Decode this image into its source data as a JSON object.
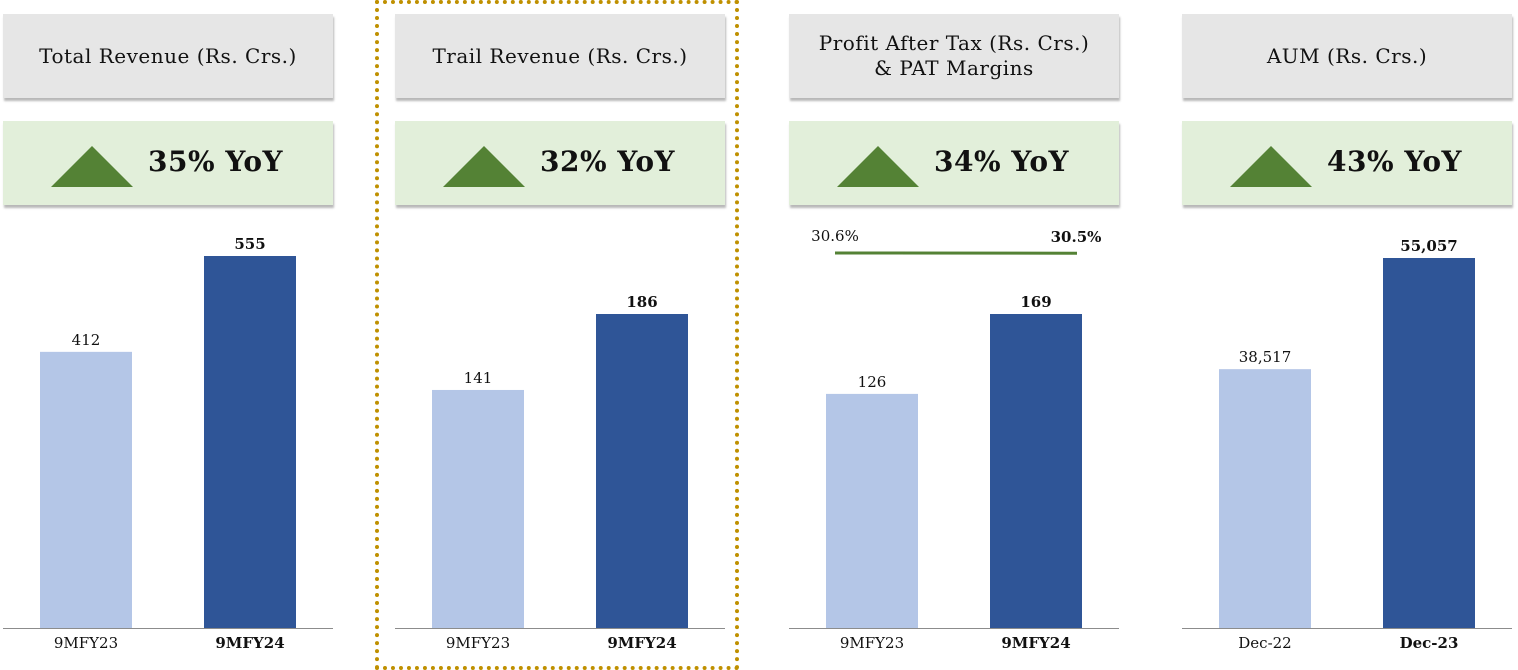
{
  "panels": [
    {
      "header": "Total Revenue (Rs. Crs.)",
      "yoy": "35% YoY"
    },
    {
      "header": "Trail Revenue (Rs. Crs.)",
      "yoy": "32% YoY"
    },
    {
      "header": "Profit After Tax (Rs. Crs.)\n& PAT Margins",
      "yoy": "34% YoY"
    },
    {
      "header": "AUM (Rs. Crs.)",
      "yoy": "43% YoY"
    }
  ],
  "colors": {
    "prior_bar": "#b4c6e7",
    "current_bar": "#2f5597",
    "arrow": "#548235",
    "margin_line": "#548235",
    "highlight_border": "#bf9000"
  },
  "chart_data": [
    {
      "type": "bar",
      "title": "Total Revenue (Rs. Crs.)",
      "categories": [
        "9MFY23",
        "9MFY24"
      ],
      "values": [
        412,
        555
      ],
      "labels": [
        "412",
        "555"
      ]
    },
    {
      "type": "bar",
      "title": "Trail Revenue (Rs. Crs.)",
      "categories": [
        "9MFY23",
        "9MFY24"
      ],
      "values": [
        141,
        186
      ],
      "labels": [
        "141",
        "186"
      ]
    },
    {
      "type": "bar",
      "title": "Profit After Tax (Rs. Crs.) & PAT Margins",
      "categories": [
        "9MFY23",
        "9MFY24"
      ],
      "values": [
        126,
        169
      ],
      "labels": [
        "126",
        "169"
      ],
      "line": {
        "values": [
          30.6,
          30.5
        ],
        "labels": [
          "30.6%",
          "30.5%"
        ]
      }
    },
    {
      "type": "bar",
      "title": "AUM (Rs. Crs.)",
      "categories": [
        "Dec-22",
        "Dec-23"
      ],
      "values": [
        38517,
        55057
      ],
      "labels": [
        "38,517",
        "55,057"
      ]
    }
  ]
}
